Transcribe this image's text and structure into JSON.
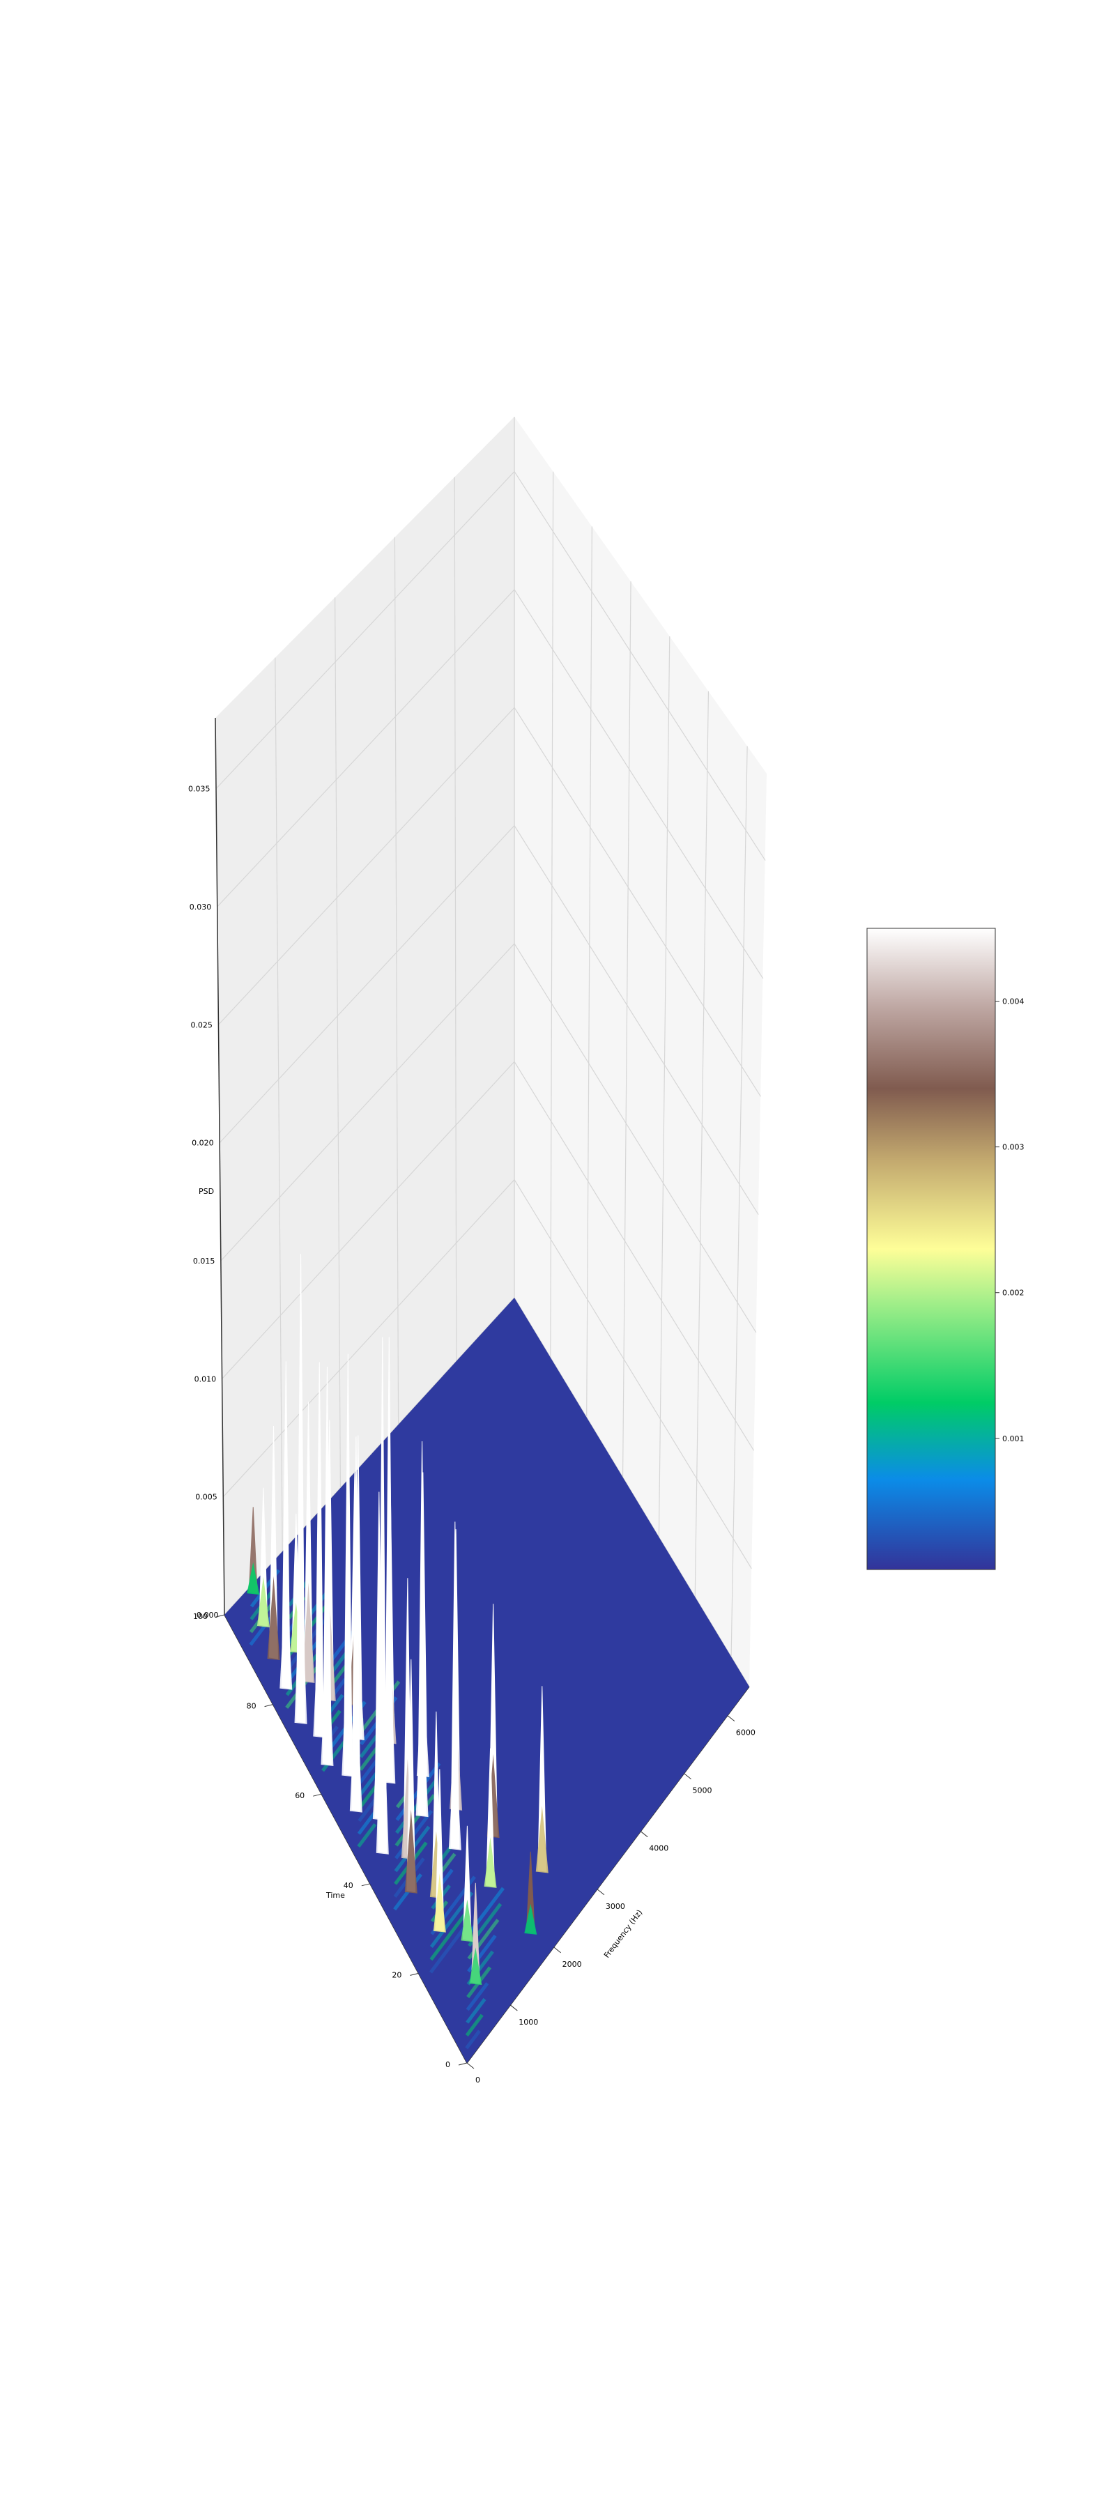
{
  "chart_data": {
    "type": "surface3d",
    "title": "",
    "xlabel": "Time",
    "ylabel": "Frequency (Hz)",
    "zlabel": "PSD",
    "x_ticks": [
      "0",
      "20",
      "40",
      "60",
      "80",
      "100"
    ],
    "y_ticks": [
      "0",
      "1000",
      "2000",
      "3000",
      "4000",
      "5000",
      "6000"
    ],
    "z_ticks": [
      "0.000",
      "0.005",
      "0.010",
      "0.015",
      "0.020",
      "0.025",
      "0.030",
      "0.035"
    ],
    "xlim": [
      0,
      100
    ],
    "ylim": [
      0,
      6500
    ],
    "zlim": [
      0,
      0.038
    ],
    "grid": true,
    "colormap": "terrain",
    "colorbar": {
      "ticks": [
        "0.001",
        "0.002",
        "0.003",
        "0.004"
      ],
      "tick_values": [
        0.001,
        0.002,
        0.003,
        0.004
      ],
      "range": [
        0.0001,
        0.0045
      ]
    },
    "peaks": [
      {
        "time": 98,
        "freq": 550,
        "psd": 0.0036
      },
      {
        "time": 92,
        "freq": 450,
        "psd": 0.0058
      },
      {
        "time": 86,
        "freq": 350,
        "psd": 0.0098
      },
      {
        "time": 83,
        "freq": 700,
        "psd": 0.0058
      },
      {
        "time": 80,
        "freq": 300,
        "psd": 0.0138
      },
      {
        "time": 77,
        "freq": 650,
        "psd": 0.0118
      },
      {
        "time": 73,
        "freq": 250,
        "psd": 0.0198
      },
      {
        "time": 71,
        "freq": 800,
        "psd": 0.0118
      },
      {
        "time": 68,
        "freq": 400,
        "psd": 0.0158
      },
      {
        "time": 66,
        "freq": 1100,
        "psd": 0.0098
      },
      {
        "time": 63,
        "freq": 300,
        "psd": 0.0168
      },
      {
        "time": 61,
        "freq": 900,
        "psd": 0.0128
      },
      {
        "time": 58,
        "freq": 500,
        "psd": 0.0178
      },
      {
        "time": 55,
        "freq": 1300,
        "psd": 0.0118
      },
      {
        "time": 52,
        "freq": 350,
        "psd": 0.0158
      },
      {
        "time": 50,
        "freq": 1000,
        "psd": 0.0188
      },
      {
        "time": 47,
        "freq": 600,
        "psd": 0.0138
      },
      {
        "time": 45,
        "freq": 1500,
        "psd": 0.0128
      },
      {
        "time": 42,
        "freq": 400,
        "psd": 0.0218
      },
      {
        "time": 40,
        "freq": 1200,
        "psd": 0.0158
      },
      {
        "time": 37,
        "freq": 700,
        "psd": 0.0118
      },
      {
        "time": 35,
        "freq": 1700,
        "psd": 0.0118
      },
      {
        "time": 32,
        "freq": 500,
        "psd": 0.0098
      },
      {
        "time": 30,
        "freq": 1400,
        "psd": 0.0138
      },
      {
        "time": 27,
        "freq": 800,
        "psd": 0.0078
      },
      {
        "time": 25,
        "freq": 2000,
        "psd": 0.0098
      },
      {
        "time": 22,
        "freq": 600,
        "psd": 0.0068
      },
      {
        "time": 19,
        "freq": 1600,
        "psd": 0.0058
      },
      {
        "time": 16,
        "freq": 900,
        "psd": 0.0048
      },
      {
        "time": 12,
        "freq": 2400,
        "psd": 0.0078
      },
      {
        "time": 9,
        "freq": 700,
        "psd": 0.0042
      },
      {
        "time": 6,
        "freq": 1800,
        "psd": 0.0034
      }
    ]
  }
}
